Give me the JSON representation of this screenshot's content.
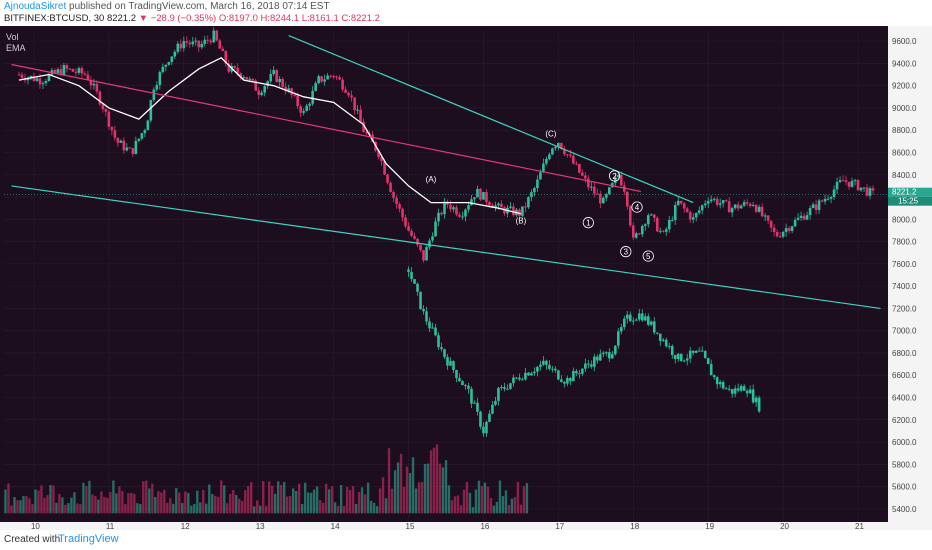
{
  "header": {
    "author": "AjnoudaSikret",
    "published_text": "published on TradingView.com, March 16, 2018 07:14 EST",
    "symbol": "BITFINEX:BTCUSD, 30",
    "last": "8221.2",
    "change": "▼ −28.9 (−0.35%)",
    "ohlc": "O:8197.0 H:8244.1 L:8161.1 C:8221.2"
  },
  "indicators": {
    "vol": "Vol",
    "ema": "EMA"
  },
  "footer": {
    "created_with": "Created with",
    "brand": "TradingView"
  },
  "colors": {
    "background": "#1c0d1f",
    "up": "#2bbf9e",
    "down": "#e0356b",
    "ema": "#ffffff",
    "trend_cyan": "#3ad6c0",
    "trend_pink": "#e43b78",
    "last_price_bg": "#2aa790"
  },
  "chart_data": {
    "type": "candlestick",
    "x_ticks": [
      "10",
      "11",
      "12",
      "13",
      "14",
      "15",
      "16",
      "17",
      "18",
      "19",
      "20",
      "21"
    ],
    "y_ticks": [
      "9600.0",
      "9400.0",
      "9200.0",
      "9000.0",
      "8800.0",
      "8600.0",
      "8400.0",
      "8200.0",
      "8000.0",
      "7800.0",
      "7600.0",
      "7400.0",
      "7200.0",
      "7000.0",
      "6800.0",
      "6600.0",
      "6400.0",
      "6200.0",
      "6000.0",
      "5800.0",
      "5600.0",
      "5400.0"
    ],
    "ylim": [
      5300,
      9700
    ],
    "last_price": "8221.2",
    "countdown": "15:25",
    "series": [
      {
        "name": "BTCUSD",
        "points": [
          [
            9.8,
            9300
          ],
          [
            10.1,
            9250
          ],
          [
            10.4,
            9350
          ],
          [
            10.7,
            9300
          ],
          [
            10.9,
            9050
          ],
          [
            11.1,
            8700
          ],
          [
            11.3,
            8600
          ],
          [
            11.5,
            8850
          ],
          [
            11.6,
            9200
          ],
          [
            11.8,
            9450
          ],
          [
            12.0,
            9600
          ],
          [
            12.2,
            9550
          ],
          [
            12.4,
            9650
          ],
          [
            12.6,
            9350
          ],
          [
            12.8,
            9300
          ],
          [
            13.0,
            9150
          ],
          [
            13.2,
            9300
          ],
          [
            13.4,
            9150
          ],
          [
            13.6,
            8950
          ],
          [
            13.8,
            9250
          ],
          [
            14.0,
            9300
          ],
          [
            14.2,
            9150
          ],
          [
            14.4,
            8800
          ],
          [
            14.6,
            8600
          ],
          [
            14.8,
            8200
          ],
          [
            15.0,
            7900
          ],
          [
            15.2,
            7650
          ],
          [
            15.35,
            7950
          ],
          [
            15.5,
            8150
          ],
          [
            15.7,
            8050
          ],
          [
            15.9,
            8250
          ],
          [
            16.2,
            8100
          ],
          [
            16.5,
            8050
          ],
          [
            16.7,
            8300
          ],
          [
            16.9,
            8650
          ],
          [
            17.0,
            8700
          ],
          [
            17.2,
            8500
          ],
          [
            17.4,
            8300
          ],
          [
            17.6,
            8150
          ],
          [
            17.8,
            8400
          ],
          [
            17.9,
            8250
          ],
          [
            18.0,
            7800
          ],
          [
            18.2,
            8050
          ],
          [
            18.4,
            7850
          ],
          [
            18.6,
            8150
          ],
          [
            18.8,
            8000
          ],
          [
            19.0,
            8200
          ],
          [
            19.3,
            8100
          ],
          [
            19.6,
            8150
          ],
          [
            19.9,
            7850
          ],
          [
            20.2,
            8000
          ],
          [
            20.5,
            8150
          ],
          [
            20.8,
            8350
          ],
          [
            21.0,
            8300
          ],
          [
            21.2,
            8221
          ]
        ]
      },
      {
        "name": "Overlay",
        "points": [
          [
            15.0,
            7550
          ],
          [
            15.2,
            7150
          ],
          [
            15.5,
            6750
          ],
          [
            15.8,
            6450
          ],
          [
            16.0,
            6100
          ],
          [
            16.2,
            6450
          ],
          [
            16.5,
            6600
          ],
          [
            16.8,
            6700
          ],
          [
            17.1,
            6550
          ],
          [
            17.5,
            6750
          ],
          [
            17.7,
            6800
          ],
          [
            17.9,
            7100
          ],
          [
            18.1,
            7150
          ],
          [
            18.3,
            7000
          ],
          [
            18.6,
            6750
          ],
          [
            18.9,
            6800
          ],
          [
            19.1,
            6550
          ],
          [
            19.3,
            6450
          ],
          [
            19.5,
            6500
          ],
          [
            19.7,
            6300
          ]
        ]
      },
      {
        "name": "EMA",
        "points": [
          [
            9.8,
            9250
          ],
          [
            10.2,
            9300
          ],
          [
            10.6,
            9200
          ],
          [
            11.0,
            9000
          ],
          [
            11.4,
            8900
          ],
          [
            11.8,
            9150
          ],
          [
            12.2,
            9350
          ],
          [
            12.5,
            9450
          ],
          [
            12.8,
            9250
          ],
          [
            13.2,
            9200
          ],
          [
            13.6,
            9100
          ],
          [
            14.0,
            9050
          ],
          [
            14.4,
            8850
          ],
          [
            14.7,
            8500
          ],
          [
            15.0,
            8300
          ],
          [
            15.3,
            8150
          ],
          [
            15.8,
            8150
          ],
          [
            16.2,
            8100
          ],
          [
            16.5,
            8050
          ]
        ]
      }
    ],
    "trendlines": [
      {
        "color": "cyan",
        "from": [
          9.7,
          8300
        ],
        "to": [
          21.3,
          7200
        ]
      },
      {
        "color": "cyan",
        "from": [
          13.4,
          9650
        ],
        "to": [
          18.8,
          8150
        ]
      },
      {
        "color": "pink",
        "from": [
          9.7,
          9390
        ],
        "to": [
          18.1,
          8250
        ]
      }
    ],
    "wave_labels": [
      {
        "text": "(A)",
        "x": 15.3,
        "y": 8360
      },
      {
        "text": "(B)",
        "x": 16.5,
        "y": 7990
      },
      {
        "text": "(C)",
        "x": 16.9,
        "y": 8770
      },
      {
        "text": "1",
        "x": 17.4,
        "y": 7970
      },
      {
        "text": "2",
        "x": 17.75,
        "y": 8390
      },
      {
        "text": "3",
        "x": 17.9,
        "y": 7710
      },
      {
        "text": "4",
        "x": 18.05,
        "y": 8110
      },
      {
        "text": "5",
        "x": 18.2,
        "y": 7670
      }
    ]
  }
}
